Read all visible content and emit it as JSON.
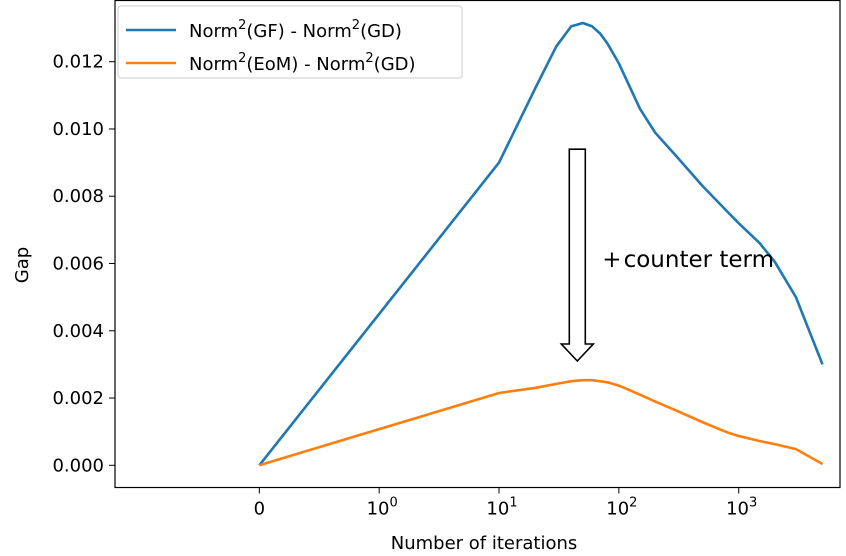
{
  "chart_data": {
    "type": "line",
    "xlabel": "Number of iterations",
    "ylabel": "Gap",
    "x_scale": "symlog",
    "x_ticks": [
      {
        "value": 0,
        "base": "0",
        "exp": ""
      },
      {
        "value": 1,
        "base": "10",
        "exp": "0"
      },
      {
        "value": 10,
        "base": "10",
        "exp": "1"
      },
      {
        "value": 100,
        "base": "10",
        "exp": "2"
      },
      {
        "value": 1000,
        "base": "10",
        "exp": "3"
      }
    ],
    "y_ticks": [
      "0.000",
      "0.002",
      "0.004",
      "0.006",
      "0.008",
      "0.010",
      "0.012"
    ],
    "ylim": [
      -0.00066,
      0.01382
    ],
    "xlim": [
      -1.6,
      7000
    ],
    "grid": false,
    "legend_position": "top-left",
    "series": [
      {
        "name_base": "Norm",
        "name_exp": "2",
        "name_mid": "(GF)  - Norm",
        "name_exp2": "2",
        "name_end": "(GD)",
        "color": "#1f77b4",
        "x": [
          0,
          10,
          20,
          30,
          40,
          50,
          60,
          70,
          80,
          100,
          150,
          200,
          300,
          500,
          800,
          1000,
          1500,
          2000,
          3000,
          5000
        ],
        "y": [
          0,
          0.009,
          0.0112,
          0.01245,
          0.01305,
          0.01315,
          0.01305,
          0.01283,
          0.01255,
          0.01195,
          0.0106,
          0.0099,
          0.0092,
          0.0083,
          0.00755,
          0.0072,
          0.0066,
          0.00605,
          0.005,
          0.003
        ]
      },
      {
        "name_base": "Norm",
        "name_exp": "2",
        "name_mid": "(EoM)  - Norm",
        "name_exp2": "2",
        "name_end": "(GD)",
        "color": "#ff7f0e",
        "x": [
          0,
          10,
          20,
          30,
          40,
          50,
          60,
          80,
          100,
          150,
          200,
          300,
          500,
          800,
          1000,
          1500,
          2000,
          3000,
          5000
        ],
        "y": [
          0,
          0.00215,
          0.0023,
          0.00242,
          0.0025,
          0.00253,
          0.00253,
          0.00247,
          0.00237,
          0.0021,
          0.0019,
          0.00163,
          0.00128,
          0.00098,
          0.00087,
          0.00072,
          0.00063,
          0.00048,
          4e-05
        ]
      }
    ],
    "annotation": {
      "text": "counter term",
      "prefix": "+",
      "arrow_from_y": 0.0094,
      "arrow_to_y": 0.0031,
      "arrow_x": 45
    }
  }
}
